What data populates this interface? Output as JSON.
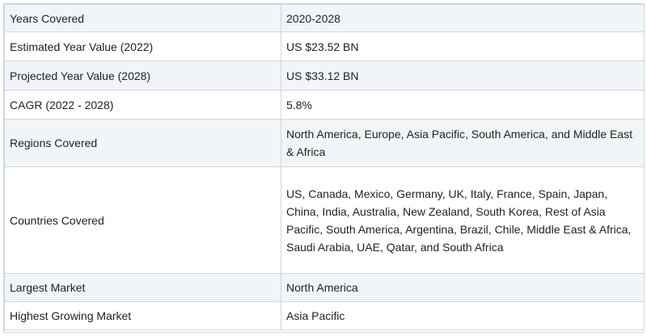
{
  "table": {
    "rows": [
      {
        "label": "Years Covered",
        "value": "2020-2028"
      },
      {
        "label": "Estimated Year Value (2022)",
        "value": "US $23.52 BN"
      },
      {
        "label": "Projected Year Value (2028)",
        "value": "US $33.12 BN"
      },
      {
        "label": "CAGR (2022 - 2028)",
        "value": "5.8%"
      },
      {
        "label": "Regions Covered",
        "value": "North America, Europe, Asia Pacific, South America, and Middle East & Africa"
      },
      {
        "label": "Countries Covered",
        "value": "US, Canada, Mexico, Germany, UK, Italy, France, Spain, Japan, China, India, Australia, New Zealand, South Korea, Rest of Asia Pacific, South America, Argentina, Brazil, Chile, Middle East & Africa, Saudi Arabia, UAE, Qatar, and South Africa"
      },
      {
        "label": "Largest Market",
        "value": "North America"
      },
      {
        "label": "Highest Growing Market",
        "value": "Asia Pacific"
      }
    ]
  }
}
